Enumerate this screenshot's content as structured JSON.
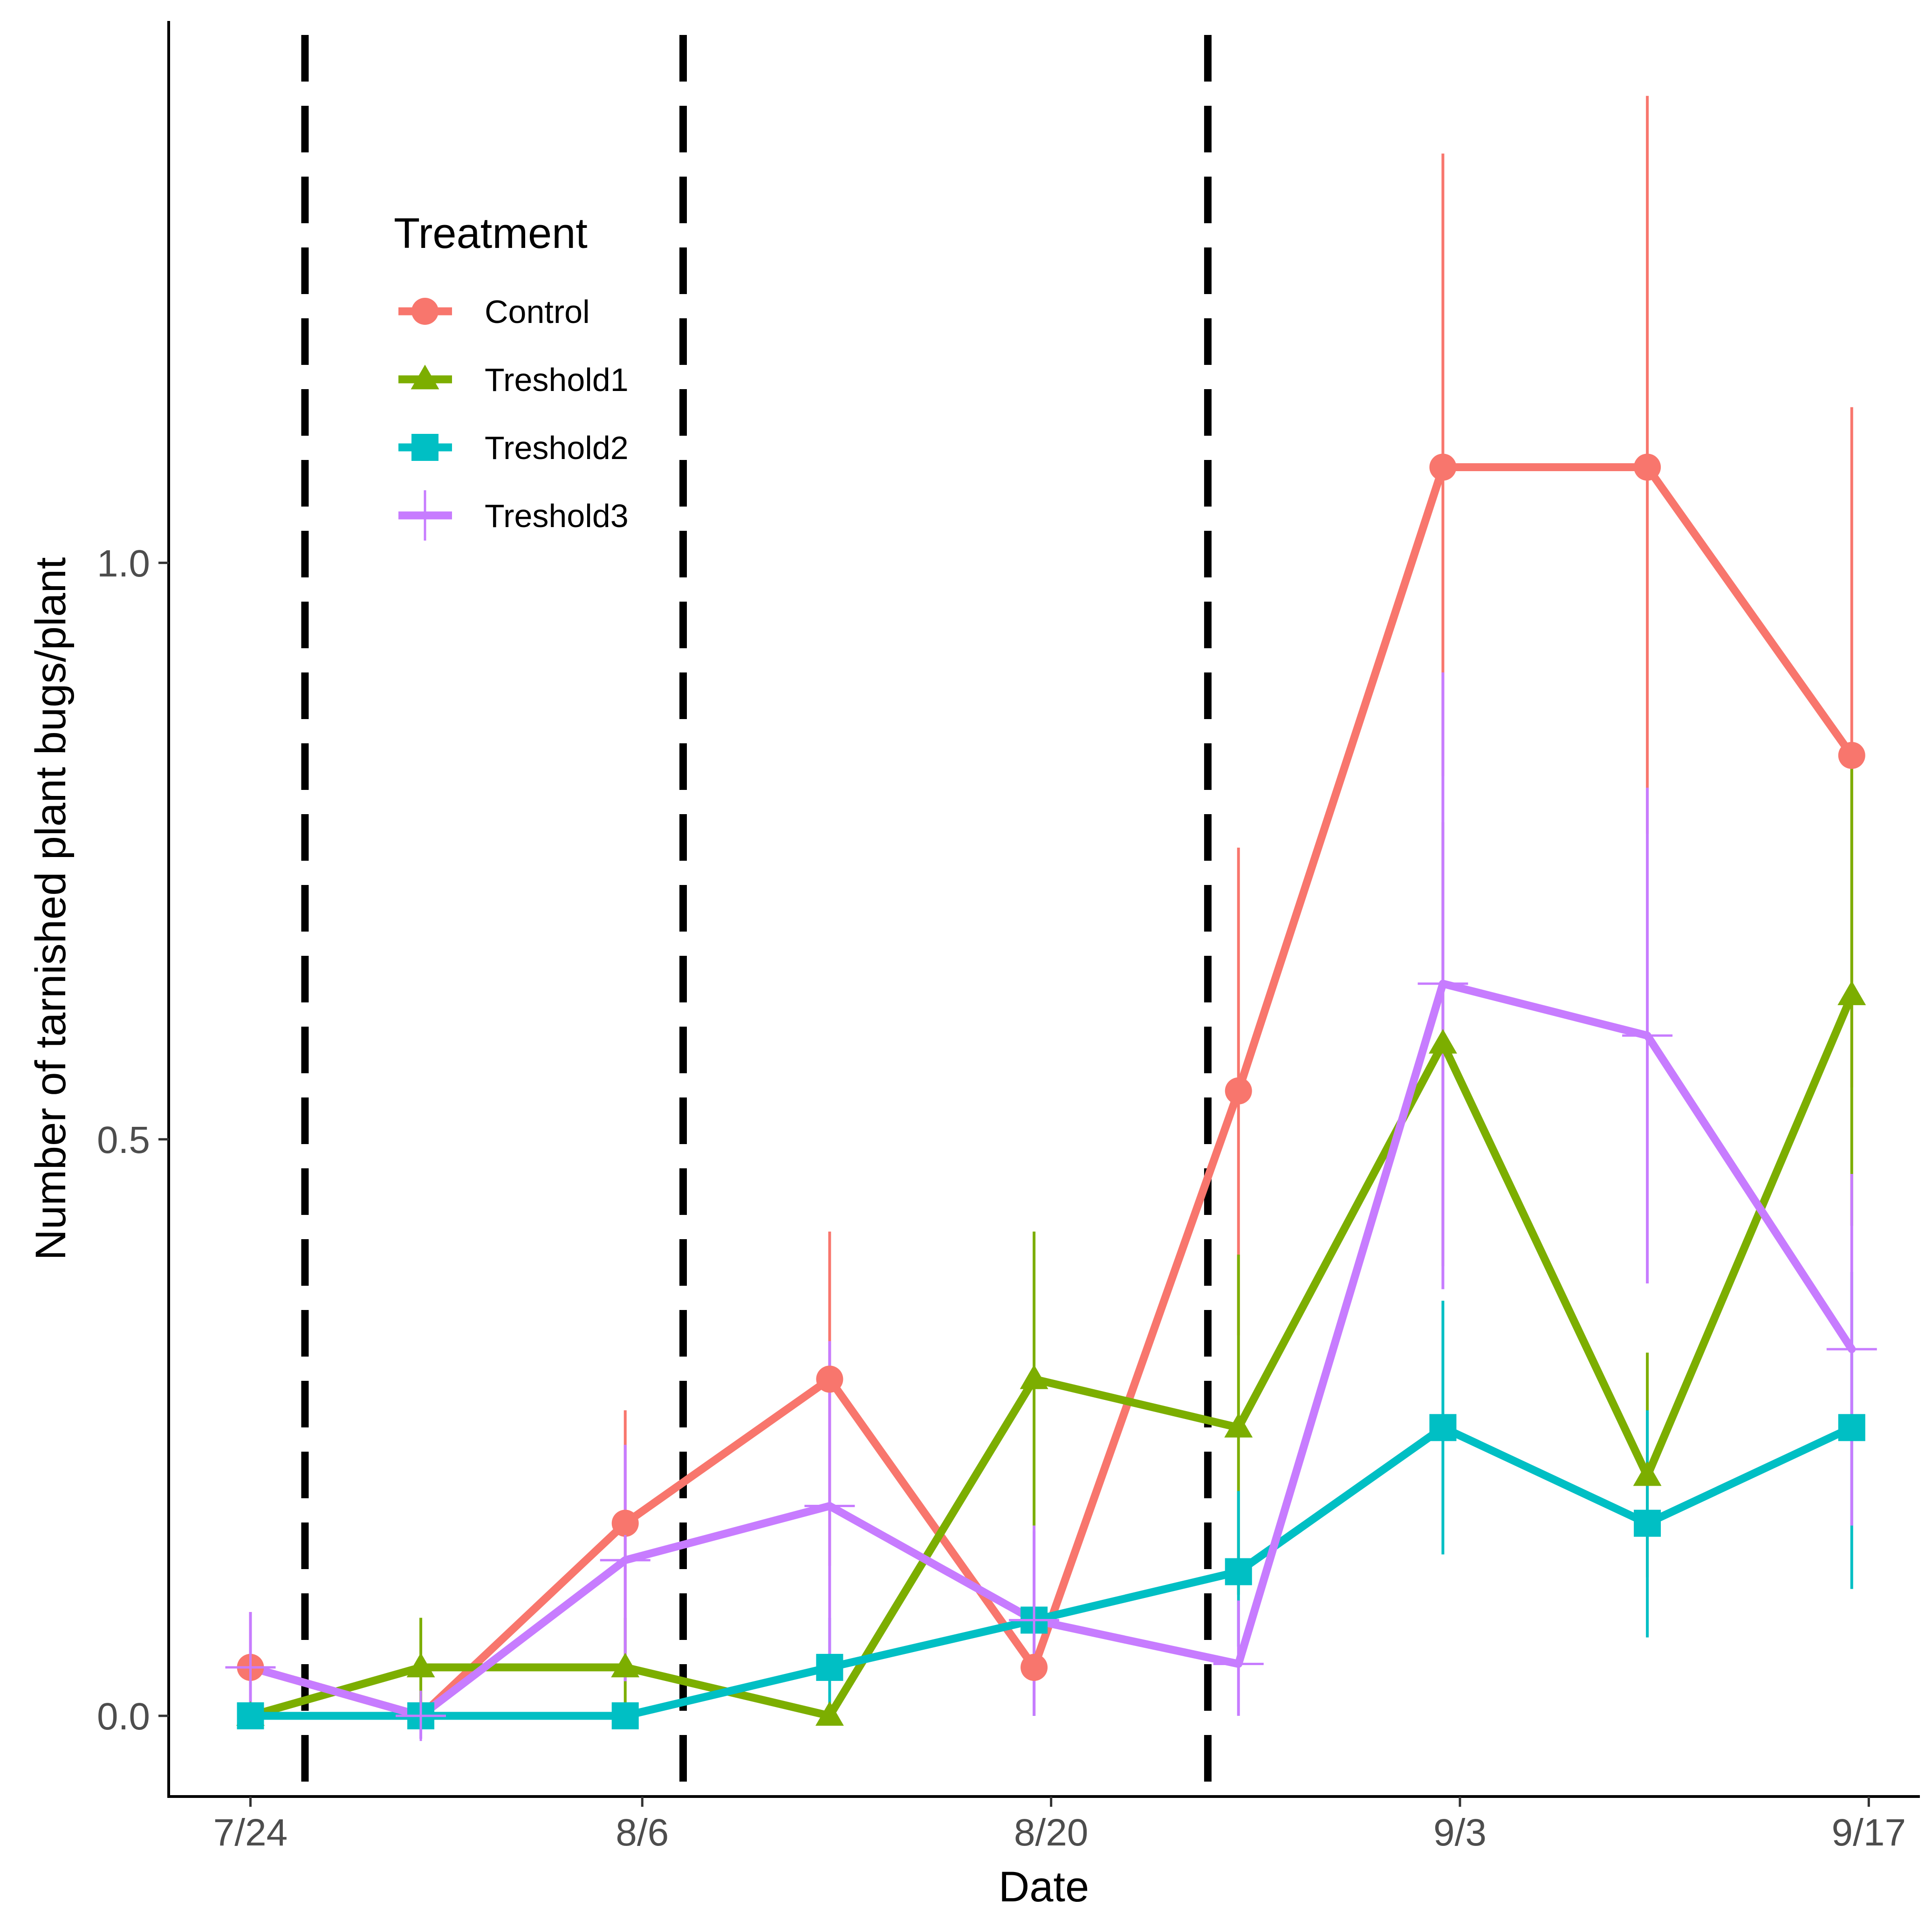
{
  "chart_data": {
    "type": "line",
    "title": "",
    "xlabel": "Date",
    "ylabel": "Number of tarnished plant bugs/plant",
    "x_days": [
      0,
      5,
      11,
      17,
      23,
      29,
      35,
      41,
      47
    ],
    "x_range_days": [
      -2.4,
      49.0
    ],
    "x_ticks": [
      {
        "day": 0,
        "label": "7/24"
      },
      {
        "day": 11.5,
        "label": "8/6"
      },
      {
        "day": 23.5,
        "label": "8/20"
      },
      {
        "day": 35.5,
        "label": "9/3"
      },
      {
        "day": 47.5,
        "label": "9/17"
      }
    ],
    "y_ticks": [
      {
        "value": 0.0,
        "label": "0.0"
      },
      {
        "value": 0.5,
        "label": "0.5"
      },
      {
        "value": 1.0,
        "label": "1.0"
      }
    ],
    "ylim": [
      -0.07,
      1.47
    ],
    "vlines_days": [
      1.6,
      12.7,
      28.1
    ],
    "legend": {
      "title": "Treatment",
      "placement": "top-left"
    },
    "series": [
      {
        "name": "Control",
        "color": "#F8766D",
        "marker": "circle",
        "points": [
          {
            "x": 0,
            "y": 0.042,
            "lo": 0.0,
            "hi": 0.09
          },
          {
            "x": 5,
            "y": 0.0,
            "lo": 0.0,
            "hi": 0.0
          },
          {
            "x": 11,
            "y": 0.167,
            "lo": 0.04,
            "hi": 0.265
          },
          {
            "x": 17,
            "y": 0.292,
            "lo": 0.13,
            "hi": 0.42
          },
          {
            "x": 23,
            "y": 0.042,
            "lo": 0.0,
            "hi": 0.08
          },
          {
            "x": 29,
            "y": 0.542,
            "lo": 0.33,
            "hi": 0.753
          },
          {
            "x": 35,
            "y": 1.083,
            "lo": 0.815,
            "hi": 1.355
          },
          {
            "x": 41,
            "y": 1.083,
            "lo": 0.765,
            "hi": 1.405
          },
          {
            "x": 47,
            "y": 0.833,
            "lo": 0.545,
            "hi": 1.135
          }
        ]
      },
      {
        "name": "Treshold1",
        "color": "#7CAE00",
        "marker": "triangle",
        "points": [
          {
            "x": 0,
            "y": 0.0,
            "lo": 0.0,
            "hi": 0.0
          },
          {
            "x": 5,
            "y": 0.042,
            "lo": 0.0,
            "hi": 0.085
          },
          {
            "x": 11,
            "y": 0.042,
            "lo": 0.0,
            "hi": 0.085
          },
          {
            "x": 17,
            "y": 0.0,
            "lo": 0.0,
            "hi": 0.0
          },
          {
            "x": 23,
            "y": 0.292,
            "lo": 0.165,
            "hi": 0.42
          },
          {
            "x": 29,
            "y": 0.25,
            "lo": 0.105,
            "hi": 0.4
          },
          {
            "x": 35,
            "y": 0.583,
            "lo": 0.39,
            "hi": 0.775
          },
          {
            "x": 41,
            "y": 0.208,
            "lo": 0.12,
            "hi": 0.315
          },
          {
            "x": 47,
            "y": 0.625,
            "lo": 0.425,
            "hi": 0.83
          }
        ]
      },
      {
        "name": "Treshold2",
        "color": "#00BFC4",
        "marker": "square",
        "points": [
          {
            "x": 0,
            "y": 0.0,
            "lo": 0.0,
            "hi": 0.0
          },
          {
            "x": 5,
            "y": 0.0,
            "lo": 0.0,
            "hi": 0.0
          },
          {
            "x": 11,
            "y": 0.0,
            "lo": 0.0,
            "hi": 0.0
          },
          {
            "x": 17,
            "y": 0.042,
            "lo": 0.0,
            "hi": 0.085
          },
          {
            "x": 23,
            "y": 0.083,
            "lo": 0.0,
            "hi": 0.16
          },
          {
            "x": 29,
            "y": 0.125,
            "lo": 0.06,
            "hi": 0.195
          },
          {
            "x": 35,
            "y": 0.25,
            "lo": 0.14,
            "hi": 0.36
          },
          {
            "x": 41,
            "y": 0.167,
            "lo": 0.068,
            "hi": 0.265
          },
          {
            "x": 47,
            "y": 0.25,
            "lo": 0.11,
            "hi": 0.385
          }
        ]
      },
      {
        "name": "Treshold3",
        "color": "#C77CFF",
        "marker": "plus",
        "points": [
          {
            "x": 0,
            "y": 0.042,
            "lo": 0.0,
            "hi": 0.09
          },
          {
            "x": 5,
            "y": 0.0,
            "lo": -0.02,
            "hi": 0.0
          },
          {
            "x": 11,
            "y": 0.135,
            "lo": 0.03,
            "hi": 0.235
          },
          {
            "x": 17,
            "y": 0.182,
            "lo": 0.04,
            "hi": 0.325
          },
          {
            "x": 23,
            "y": 0.083,
            "lo": 0.0,
            "hi": 0.165
          },
          {
            "x": 29,
            "y": 0.045,
            "lo": 0.0,
            "hi": 0.1
          },
          {
            "x": 35,
            "y": 0.635,
            "lo": 0.37,
            "hi": 0.905
          },
          {
            "x": 41,
            "y": 0.59,
            "lo": 0.375,
            "hi": 0.805
          },
          {
            "x": 47,
            "y": 0.318,
            "lo": 0.165,
            "hi": 0.47
          }
        ]
      }
    ]
  }
}
